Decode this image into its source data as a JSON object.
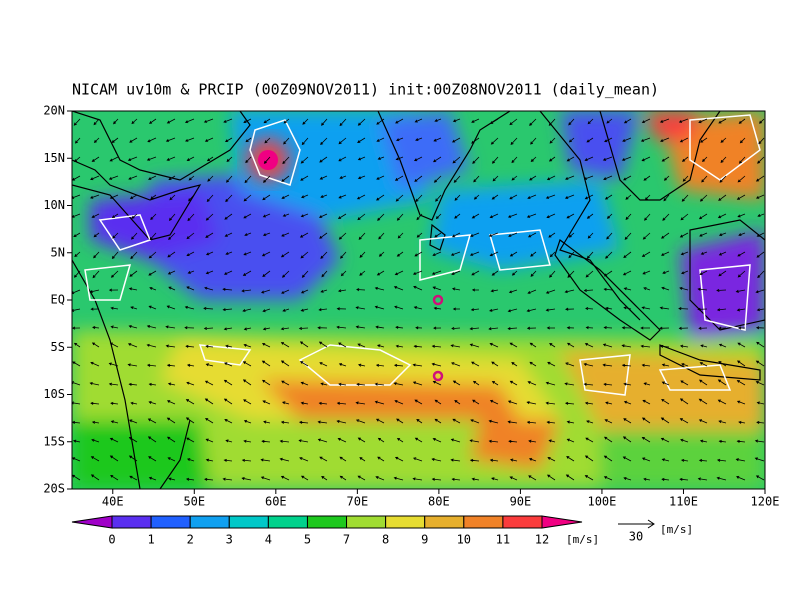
{
  "title": "NICAM uv10m & PRCIP (00Z09NOV2011) init:00Z08NOV2011 (daily_mean)",
  "map": {
    "lon_range": [
      35,
      120
    ],
    "lat_range": [
      -20,
      20
    ],
    "lon_ticks": [
      {
        "value": 40,
        "label": "40E"
      },
      {
        "value": 50,
        "label": "50E"
      },
      {
        "value": 60,
        "label": "60E"
      },
      {
        "value": 70,
        "label": "70E"
      },
      {
        "value": 80,
        "label": "80E"
      },
      {
        "value": 90,
        "label": "90E"
      },
      {
        "value": 100,
        "label": "100E"
      },
      {
        "value": 110,
        "label": "110E"
      },
      {
        "value": 120,
        "label": "120E"
      }
    ],
    "lat_ticks": [
      {
        "value": 20,
        "label": "20N"
      },
      {
        "value": 15,
        "label": "15N"
      },
      {
        "value": 10,
        "label": "10N"
      },
      {
        "value": 5,
        "label": "5N"
      },
      {
        "value": 0,
        "label": "EQ"
      },
      {
        "value": -5,
        "label": "5S"
      },
      {
        "value": -10,
        "label": "10S"
      },
      {
        "value": -15,
        "label": "15S"
      },
      {
        "value": -20,
        "label": "20S"
      }
    ]
  },
  "colorbar": {
    "levels": [
      0,
      1,
      2,
      3,
      4,
      5,
      7,
      8,
      9,
      10,
      11,
      12
    ],
    "colors": [
      "#a000c8",
      "#5a2ff0",
      "#2060ff",
      "#10a0f0",
      "#00c8c8",
      "#00d28c",
      "#1ec81e",
      "#a0dc32",
      "#e6dc32",
      "#e6af2d",
      "#f08228",
      "#fa3c3c",
      "#f00082"
    ],
    "unit": "[m/s]"
  },
  "reference_vector": {
    "value": 30,
    "unit": "[m/s]"
  }
}
